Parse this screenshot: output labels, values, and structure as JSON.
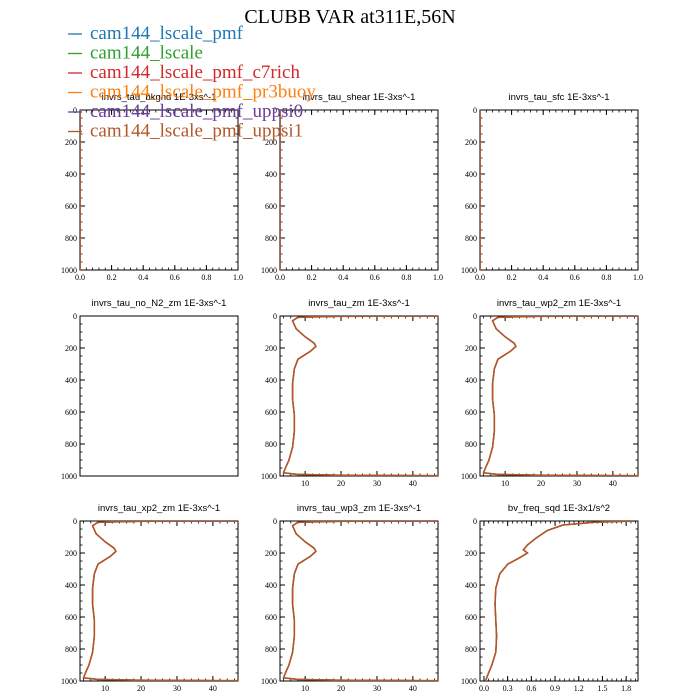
{
  "figure": {
    "title": "CLUBB VAR at311E,56N"
  },
  "colors": {
    "axis": "#000000",
    "background": "#ffffff"
  },
  "legend": [
    {
      "label": "cam144_lscale_pmf",
      "color": "#1f77b4"
    },
    {
      "label": "cam144_lscale",
      "color": "#2ca02c"
    },
    {
      "label": "cam144_lscale_pmf_c7rich",
      "color": "#d62728"
    },
    {
      "label": "cam144_lscale_pmf_pr3buoy",
      "color": "#ff7f0e"
    },
    {
      "label": "cam144_lscale_pmf_uppsi0",
      "color": "#6a3d9a"
    },
    {
      "label": "cam144_lscale_pmf_uppsi1",
      "color": "#b2572a"
    }
  ],
  "chart_data": [
    {
      "type": "line",
      "title": "invrs_tau_bkgnd   1E-3xs^-1",
      "xlim": [
        0,
        1
      ],
      "xticks": [
        "0.0",
        "0.2",
        "0.4",
        "0.6",
        "0.8",
        "1.0"
      ],
      "xtick_values": [
        0,
        0.2,
        0.4,
        0.6,
        0.8,
        1.0
      ],
      "ylim": [
        0,
        1000
      ],
      "yticks": [
        "0",
        "200",
        "400",
        "600",
        "800",
        "1000"
      ],
      "ytick_values": [
        0,
        200,
        400,
        600,
        800,
        1000
      ],
      "y_inverted": true,
      "profile": [
        [
          0,
          0
        ],
        [
          0,
          1000
        ]
      ]
    },
    {
      "type": "line",
      "title": "invrs_tau_shear   1E-3xs^-1",
      "xlim": [
        0,
        1
      ],
      "xticks": [
        "0.0",
        "0.2",
        "0.4",
        "0.6",
        "0.8",
        "1.0"
      ],
      "xtick_values": [
        0,
        0.2,
        0.4,
        0.6,
        0.8,
        1.0
      ],
      "ylim": [
        0,
        1000
      ],
      "yticks": [
        "0",
        "200",
        "400",
        "600",
        "800",
        "1000"
      ],
      "ytick_values": [
        0,
        200,
        400,
        600,
        800,
        1000
      ],
      "y_inverted": true,
      "profile": [
        [
          0,
          0
        ],
        [
          0,
          1000
        ]
      ]
    },
    {
      "type": "line",
      "title": "invrs_tau_sfc   1E-3xs^-1",
      "xlim": [
        0,
        1
      ],
      "xticks": [
        "0.0",
        "0.2",
        "0.4",
        "0.6",
        "0.8",
        "1.0"
      ],
      "xtick_values": [
        0,
        0.2,
        0.4,
        0.6,
        0.8,
        1.0
      ],
      "ylim": [
        0,
        1000
      ],
      "yticks": [
        "0",
        "200",
        "400",
        "600",
        "800",
        "1000"
      ],
      "ytick_values": [
        0,
        200,
        400,
        600,
        800,
        1000
      ],
      "y_inverted": true,
      "profile": [
        [
          0,
          0
        ],
        [
          0,
          1000
        ]
      ]
    },
    {
      "type": "line",
      "title": "invrs_tau_no_N2_zm   1E-3xs^-1",
      "xlim": [
        0,
        1
      ],
      "xticks": [],
      "xtick_values": [],
      "ylim": [
        0,
        1000
      ],
      "yticks": [
        "0",
        "200",
        "400",
        "600",
        "800",
        "1000"
      ],
      "ytick_values": [
        0,
        200,
        400,
        600,
        800,
        1000
      ],
      "y_inverted": true,
      "profile": []
    },
    {
      "type": "line",
      "title": "invrs_tau_zm   1E-3xs^-1",
      "xlim": [
        3,
        47
      ],
      "xticks": [
        "10",
        "20",
        "30",
        "40"
      ],
      "xtick_values": [
        10,
        20,
        30,
        40
      ],
      "ylim": [
        0,
        1000
      ],
      "yticks": [
        "0",
        "200",
        "400",
        "600",
        "800",
        "1000"
      ],
      "ytick_values": [
        0,
        200,
        400,
        600,
        800,
        1000
      ],
      "y_inverted": true,
      "profile": [
        [
          47,
          0
        ],
        [
          20,
          2
        ],
        [
          8,
          8
        ],
        [
          6.5,
          30
        ],
        [
          7.5,
          80
        ],
        [
          10,
          130
        ],
        [
          12.5,
          170
        ],
        [
          13,
          190
        ],
        [
          11.5,
          220
        ],
        [
          8,
          270
        ],
        [
          7,
          330
        ],
        [
          6.5,
          420
        ],
        [
          6.5,
          520
        ],
        [
          7,
          620
        ],
        [
          7,
          720
        ],
        [
          6.5,
          820
        ],
        [
          5.5,
          900
        ],
        [
          4.5,
          950
        ],
        [
          4,
          980
        ],
        [
          8,
          990
        ],
        [
          20,
          995
        ],
        [
          47,
          998
        ]
      ]
    },
    {
      "type": "line",
      "title": "invrs_tau_wp2_zm   1E-3xs^-1",
      "xlim": [
        3,
        47
      ],
      "xticks": [
        "10",
        "20",
        "30",
        "40"
      ],
      "xtick_values": [
        10,
        20,
        30,
        40
      ],
      "ylim": [
        0,
        1000
      ],
      "yticks": [
        "0",
        "200",
        "400",
        "600",
        "800",
        "1000"
      ],
      "ytick_values": [
        0,
        200,
        400,
        600,
        800,
        1000
      ],
      "y_inverted": true,
      "profile": [
        [
          47,
          0
        ],
        [
          20,
          2
        ],
        [
          8,
          8
        ],
        [
          6.5,
          30
        ],
        [
          7.5,
          80
        ],
        [
          10,
          130
        ],
        [
          12.5,
          170
        ],
        [
          13,
          190
        ],
        [
          11.5,
          220
        ],
        [
          8,
          270
        ],
        [
          7,
          330
        ],
        [
          6.5,
          420
        ],
        [
          6.5,
          520
        ],
        [
          7,
          620
        ],
        [
          7,
          720
        ],
        [
          6.5,
          820
        ],
        [
          5.5,
          900
        ],
        [
          4.5,
          950
        ],
        [
          4,
          980
        ],
        [
          8,
          990
        ],
        [
          20,
          995
        ],
        [
          47,
          998
        ]
      ]
    },
    {
      "type": "line",
      "title": "invrs_tau_xp2_zm   1E-3xs^-1",
      "xlim": [
        3,
        47
      ],
      "xticks": [
        "10",
        "20",
        "30",
        "40"
      ],
      "xtick_values": [
        10,
        20,
        30,
        40
      ],
      "ylim": [
        0,
        1000
      ],
      "yticks": [
        "0",
        "200",
        "400",
        "600",
        "800",
        "1000"
      ],
      "ytick_values": [
        0,
        200,
        400,
        600,
        800,
        1000
      ],
      "y_inverted": true,
      "profile": [
        [
          47,
          0
        ],
        [
          20,
          2
        ],
        [
          8,
          8
        ],
        [
          6.5,
          30
        ],
        [
          7.5,
          80
        ],
        [
          10,
          130
        ],
        [
          12.5,
          170
        ],
        [
          13,
          190
        ],
        [
          11.5,
          220
        ],
        [
          8,
          270
        ],
        [
          7,
          330
        ],
        [
          6.5,
          420
        ],
        [
          6.5,
          520
        ],
        [
          7,
          620
        ],
        [
          7,
          720
        ],
        [
          6.5,
          820
        ],
        [
          5.5,
          900
        ],
        [
          4.5,
          950
        ],
        [
          4,
          980
        ],
        [
          8,
          990
        ],
        [
          20,
          995
        ],
        [
          47,
          998
        ]
      ]
    },
    {
      "type": "line",
      "title": "invrs_tau_wp3_zm   1E-3xs^-1",
      "xlim": [
        3,
        47
      ],
      "xticks": [
        "10",
        "20",
        "30",
        "40"
      ],
      "xtick_values": [
        10,
        20,
        30,
        40
      ],
      "ylim": [
        0,
        1000
      ],
      "yticks": [
        "0",
        "200",
        "400",
        "600",
        "800",
        "1000"
      ],
      "ytick_values": [
        0,
        200,
        400,
        600,
        800,
        1000
      ],
      "y_inverted": true,
      "profile": [
        [
          47,
          0
        ],
        [
          20,
          2
        ],
        [
          8,
          8
        ],
        [
          6.5,
          30
        ],
        [
          7.5,
          80
        ],
        [
          10,
          130
        ],
        [
          12.5,
          170
        ],
        [
          13,
          190
        ],
        [
          11.5,
          220
        ],
        [
          8,
          270
        ],
        [
          7,
          330
        ],
        [
          6.5,
          420
        ],
        [
          6.5,
          520
        ],
        [
          7,
          620
        ],
        [
          7,
          720
        ],
        [
          6.5,
          820
        ],
        [
          5.5,
          900
        ],
        [
          4.5,
          950
        ],
        [
          4,
          980
        ],
        [
          8,
          990
        ],
        [
          20,
          995
        ],
        [
          47,
          998
        ]
      ]
    },
    {
      "type": "line",
      "title": "bv_freq_sqd   1E-3x1/s^2",
      "xlim": [
        -0.05,
        1.95
      ],
      "xticks": [
        "0.0",
        "0.3",
        "0.6",
        "0.9",
        "1.2",
        "1.5",
        "1.8"
      ],
      "xtick_values": [
        0,
        0.3,
        0.6,
        0.9,
        1.2,
        1.5,
        1.8
      ],
      "ylim": [
        0,
        1000
      ],
      "yticks": [
        "0",
        "200",
        "400",
        "600",
        "800",
        "1000"
      ],
      "ytick_values": [
        0,
        200,
        400,
        600,
        800,
        1000
      ],
      "y_inverted": true,
      "profile": [
        [
          1.9,
          0
        ],
        [
          1.4,
          8
        ],
        [
          1.0,
          25
        ],
        [
          0.8,
          60
        ],
        [
          0.65,
          110
        ],
        [
          0.55,
          150
        ],
        [
          0.5,
          180
        ],
        [
          0.55,
          200
        ],
        [
          0.45,
          230
        ],
        [
          0.3,
          270
        ],
        [
          0.2,
          330
        ],
        [
          0.15,
          420
        ],
        [
          0.14,
          520
        ],
        [
          0.15,
          620
        ],
        [
          0.16,
          720
        ],
        [
          0.15,
          820
        ],
        [
          0.1,
          900
        ],
        [
          0.05,
          960
        ],
        [
          0.02,
          1000
        ]
      ]
    }
  ]
}
